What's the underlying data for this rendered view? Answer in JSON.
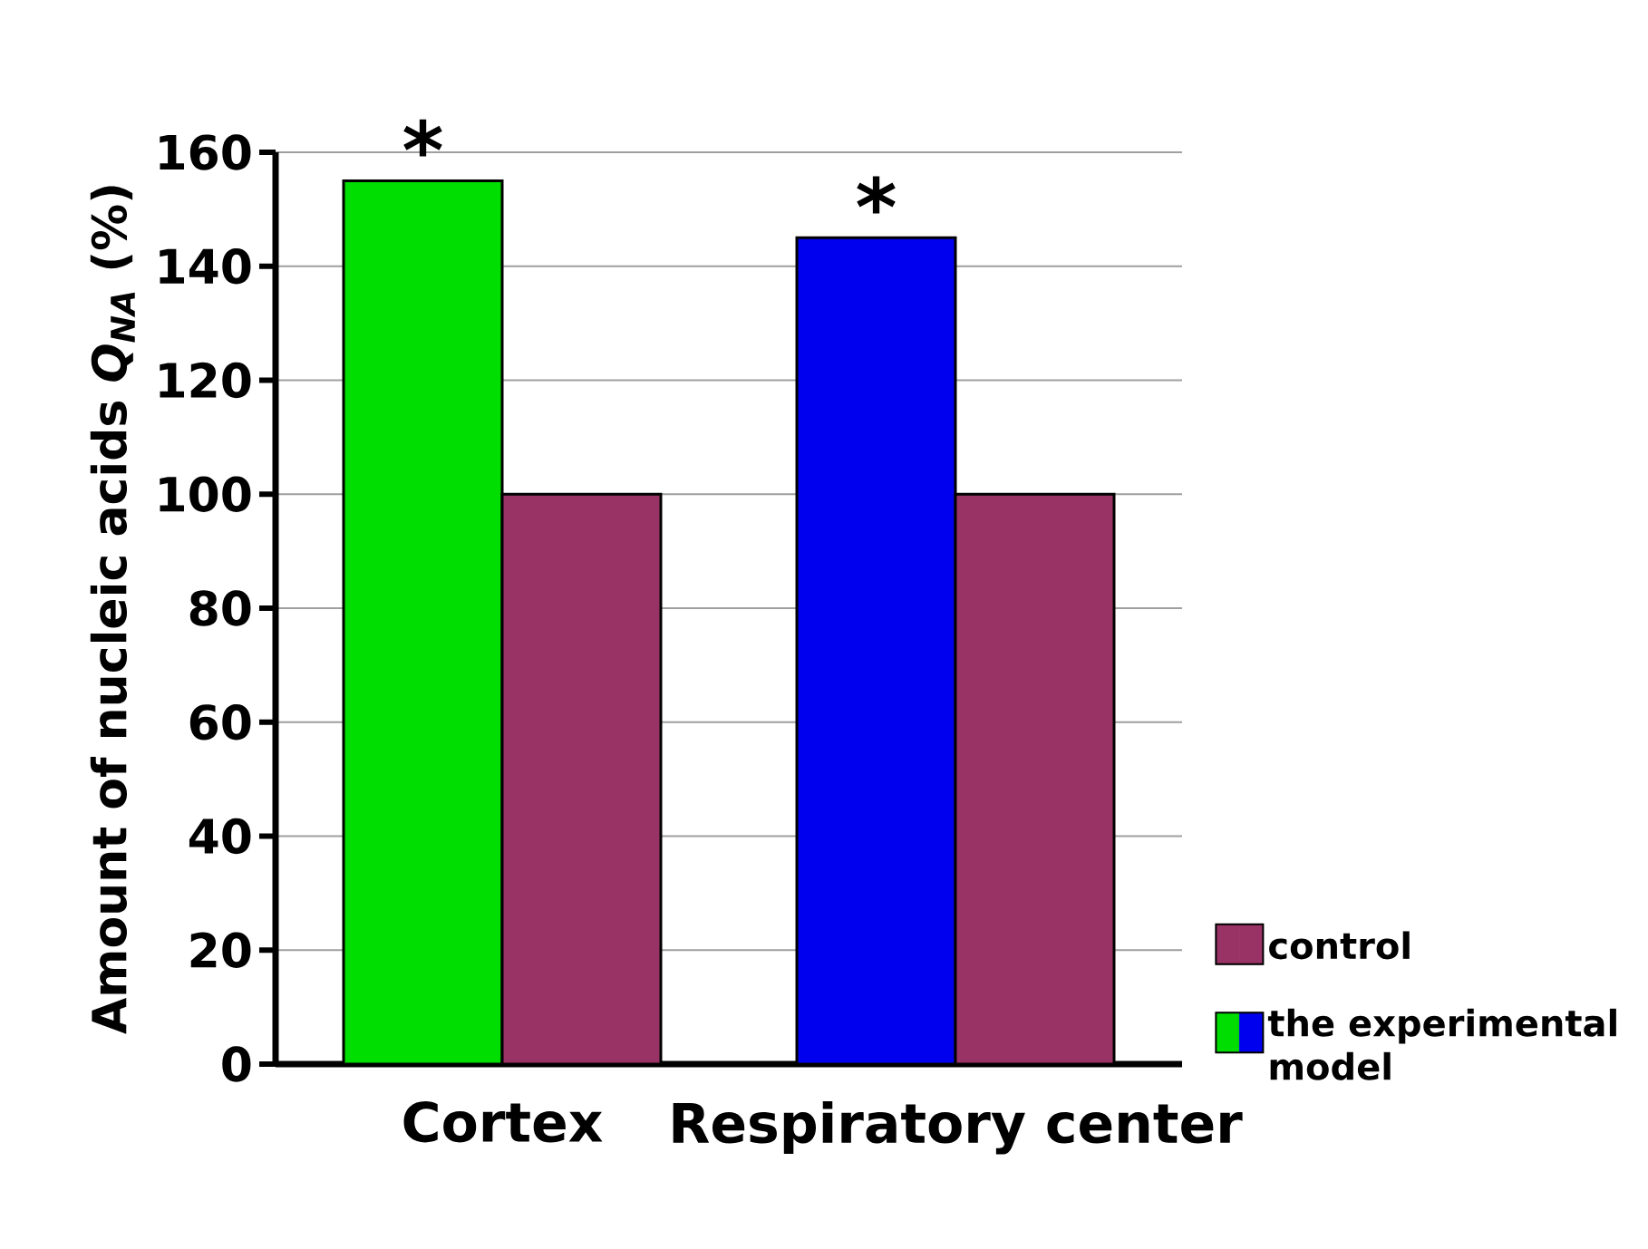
{
  "chart_data": {
    "type": "bar",
    "ylabel": "Amount of nucleic acids *Q$_{NA}$* (%)",
    "categories": [
      "Cortex",
      "Respiratory center"
    ],
    "series": [
      {
        "name": "the experimental model",
        "colors": [
          "#00dd00",
          "#0000ee"
        ],
        "values": [
          155,
          145
        ]
      },
      {
        "name": "control",
        "color": "#993366",
        "values": [
          100,
          100
        ]
      }
    ],
    "ylim": [
      0,
      160
    ],
    "yticks": [
      0,
      20,
      40,
      60,
      80,
      100,
      120,
      140,
      160
    ],
    "grid": "y",
    "legend": "right",
    "annotations": [
      {
        "text": "*",
        "x": "Cortex",
        "y": 155
      },
      {
        "text": "*",
        "x": "Respiratory center",
        "y": 145
      }
    ]
  }
}
